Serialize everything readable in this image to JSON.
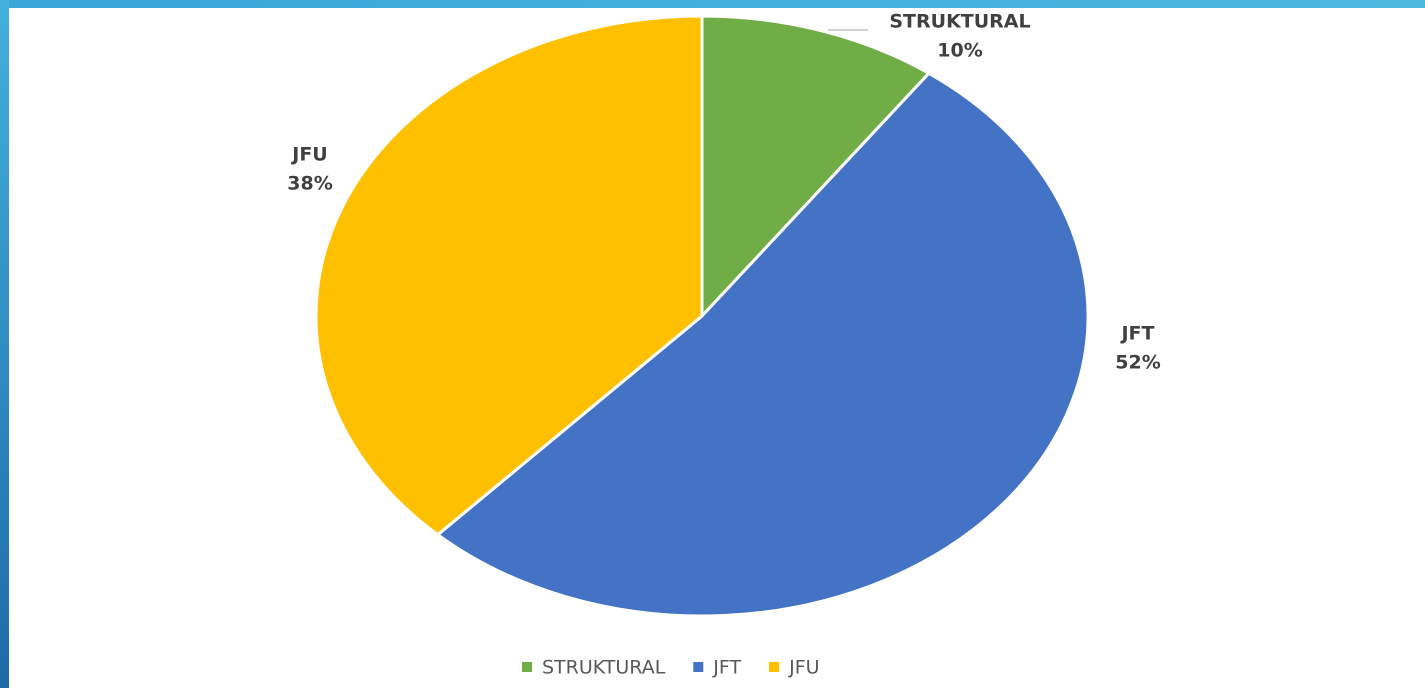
{
  "chart_data": {
    "type": "pie",
    "categories": [
      "STRUKTURAL",
      "JFT",
      "JFU"
    ],
    "values": [
      10,
      52,
      38
    ],
    "value_labels": [
      "10%",
      "52%",
      "38%"
    ],
    "colors": [
      "#70ad47",
      "#4472c4",
      "#ffc000"
    ],
    "legend": "bottom"
  }
}
